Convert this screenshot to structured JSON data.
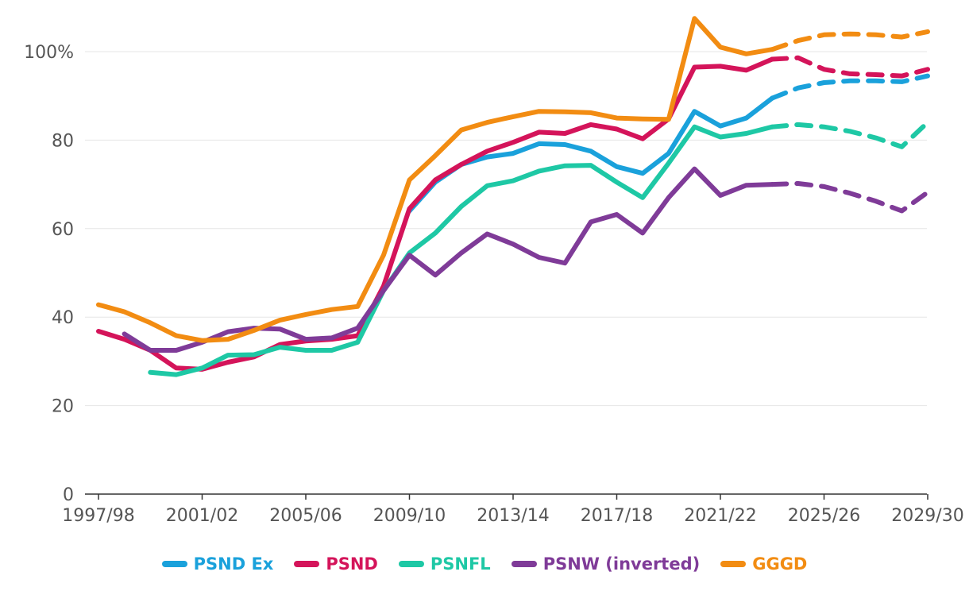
{
  "chart_data": {
    "type": "line",
    "title": "",
    "xlabel": "",
    "ylabel": "",
    "ylim": [
      0,
      110
    ],
    "yticks": [
      0,
      20,
      40,
      60,
      80,
      100
    ],
    "ytick_labels": [
      "0",
      "20",
      "40",
      "60",
      "80",
      "100%"
    ],
    "x": [
      "1997/98",
      "1998/99",
      "1999/00",
      "2000/01",
      "2001/02",
      "2002/03",
      "2003/04",
      "2004/05",
      "2005/06",
      "2006/07",
      "2007/08",
      "2008/09",
      "2009/10",
      "2010/11",
      "2011/12",
      "2012/13",
      "2013/14",
      "2014/15",
      "2015/16",
      "2016/17",
      "2017/18",
      "2018/19",
      "2019/20",
      "2020/21",
      "2021/22",
      "2022/23",
      "2023/24",
      "2024/25",
      "2025/26",
      "2026/27",
      "2027/28",
      "2028/29",
      "2029/30"
    ],
    "xtick_labels": [
      "1997/98",
      "2001/02",
      "2005/06",
      "2009/10",
      "2013/14",
      "2017/18",
      "2021/22",
      "2025/26",
      "2029/30"
    ],
    "forecast_start": "2023/24",
    "series": [
      {
        "name": "PSND Ex",
        "color": "#1AA1DB",
        "values": [
          null,
          null,
          null,
          null,
          null,
          null,
          null,
          null,
          null,
          null,
          null,
          null,
          64.0,
          70.5,
          74.5,
          76.2,
          77.0,
          79.2,
          79.0,
          77.5,
          74.0,
          72.5,
          77.0,
          86.5,
          83.2,
          85.0,
          89.5,
          91.8,
          93.0,
          93.4,
          93.4,
          93.2,
          94.5
        ]
      },
      {
        "name": "PSND",
        "color": "#D4145A",
        "values": [
          36.8,
          35.0,
          32.5,
          28.5,
          28.2,
          29.8,
          31.0,
          33.8,
          34.6,
          35.0,
          35.8,
          47.0,
          64.5,
          71.0,
          74.5,
          77.5,
          79.5,
          81.8,
          81.5,
          83.5,
          82.5,
          80.3,
          84.8,
          96.5,
          96.7,
          95.8,
          98.3,
          98.6,
          96.0,
          95.0,
          94.8,
          94.5,
          96.0
        ]
      },
      {
        "name": "PSNFL",
        "color": "#1EC8A5",
        "values": [
          null,
          null,
          27.5,
          27.0,
          28.5,
          31.4,
          31.5,
          33.2,
          32.5,
          32.5,
          34.3,
          46.0,
          54.5,
          59.0,
          65.0,
          69.7,
          70.8,
          73.0,
          74.2,
          74.3,
          70.5,
          67.0,
          74.8,
          83.0,
          80.7,
          81.5,
          83.0,
          83.5,
          83.0,
          82.0,
          80.5,
          78.5,
          84.0
        ]
      },
      {
        "name": "PSNW (inverted)",
        "color": "#7F3B98",
        "values": [
          null,
          36.2,
          32.5,
          32.5,
          34.3,
          36.7,
          37.5,
          37.3,
          35.0,
          35.3,
          37.5,
          46.0,
          54.0,
          49.5,
          54.5,
          58.8,
          56.5,
          53.5,
          52.2,
          61.5,
          63.2,
          59.0,
          67.0,
          73.5,
          67.5,
          69.8,
          70.0,
          70.2,
          69.5,
          68.0,
          66.2,
          64.0,
          68.2
        ]
      },
      {
        "name": "GGGD",
        "color": "#F28C12",
        "values": [
          42.8,
          41.2,
          38.7,
          35.8,
          34.7,
          35.0,
          37.0,
          39.3,
          40.6,
          41.7,
          42.4,
          54.0,
          71.0,
          76.5,
          82.3,
          84.0,
          85.3,
          86.5,
          86.4,
          86.2,
          85.0,
          84.8,
          84.7,
          107.5,
          101.0,
          99.5,
          100.5,
          102.5,
          103.8,
          104.0,
          103.8,
          103.3,
          104.5
        ]
      }
    ]
  },
  "legend": {
    "items": [
      {
        "label": "PSND Ex",
        "color": "#1AA1DB"
      },
      {
        "label": "PSND",
        "color": "#D4145A"
      },
      {
        "label": "PSNFL",
        "color": "#1EC8A5"
      },
      {
        "label": "PSNW (inverted)",
        "color": "#7F3B98"
      },
      {
        "label": "GGGD",
        "color": "#F28C12"
      }
    ]
  }
}
